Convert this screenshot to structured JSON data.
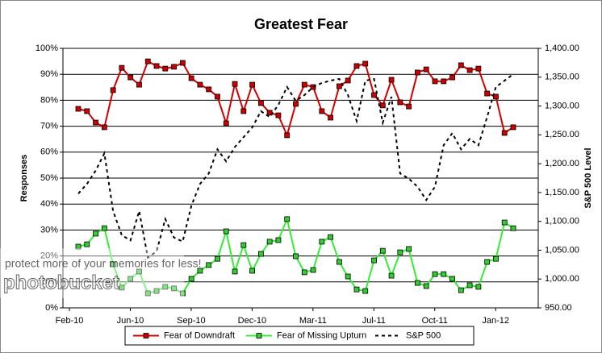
{
  "chart_data": {
    "type": "line",
    "title": "Greatest Fear",
    "y_label": "Responses",
    "y2_label": "S&P 500 Level",
    "categories": [
      "Feb-10",
      null,
      null,
      null,
      null,
      null,
      null,
      "Jun-10",
      null,
      null,
      null,
      null,
      null,
      null,
      "Sep-10",
      null,
      null,
      null,
      null,
      null,
      null,
      "Dec-10",
      null,
      null,
      null,
      null,
      null,
      null,
      "Mar-11",
      null,
      null,
      null,
      null,
      null,
      null,
      "Jul-11",
      null,
      null,
      null,
      null,
      null,
      null,
      "Oct-11",
      null,
      null,
      null,
      null,
      null,
      null,
      "Jan-12",
      null
    ],
    "series": [
      {
        "name": "Fear of Downdraft",
        "color": "#d40000",
        "marker_color": "#cc0000",
        "marker": "square",
        "dashed": false,
        "values": [
          76.7,
          75.8,
          71.4,
          69.6,
          83.9,
          92.5,
          88.8,
          86,
          95,
          93.2,
          92.2,
          92.9,
          94.4,
          88.5,
          86,
          84.2,
          81.4,
          71.1,
          86.3,
          75.8,
          86,
          78.9,
          75.2,
          74.2,
          66.5,
          78.6,
          86,
          85.1,
          75.8,
          73.3,
          85.4,
          87.6,
          93.2,
          94.1,
          82,
          78,
          87.9,
          79.2,
          77.6,
          90.7,
          91.9,
          87.3,
          87.3,
          88.8,
          93.5,
          91.6,
          92.2,
          82.6,
          81.4,
          67.4,
          69.6
        ]
      },
      {
        "name": "Fear of Missing Upturn",
        "color": "#33ee33",
        "marker_color": "#33cc33",
        "marker": "square",
        "dashed": false,
        "values": [
          23.6,
          24.5,
          28.6,
          30.7,
          16.8,
          7.8,
          11.2,
          14,
          5.6,
          6.5,
          8.1,
          7.5,
          5.6,
          11.2,
          14.3,
          16.5,
          18.9,
          29.5,
          14,
          24.2,
          14.3,
          20.8,
          25.5,
          26.1,
          34.2,
          19.9,
          13.7,
          14.6,
          25.5,
          27.3,
          17.7,
          12.1,
          7.1,
          6.5,
          18.3,
          22,
          12.4,
          21.4,
          22.7,
          9.6,
          8.4,
          13,
          13,
          11.2,
          6.8,
          8.7,
          8.1,
          17.7,
          18.9,
          32.9,
          30.7
        ]
      },
      {
        "name": "S&P 500",
        "color": "#000000",
        "marker": "none",
        "dashed": true,
        "axis": "y2",
        "values": [
          1148,
          1165,
          1188,
          1218,
          1118,
          1076,
          1067,
          1118,
          1037,
          1048,
          1104,
          1072,
          1065,
          1127,
          1165,
          1183,
          1225,
          1204,
          1229,
          1246,
          1263,
          1291,
          1281,
          1302,
          1333,
          1309,
          1319,
          1333,
          1340,
          1344,
          1347,
          1319,
          1274,
          1344,
          1347,
          1271,
          1316,
          1183,
          1174,
          1160,
          1137,
          1160,
          1232,
          1253,
          1225,
          1243,
          1232,
          1281,
          1333,
          1344,
          1355
        ]
      }
    ],
    "ylim": [
      0,
      100
    ],
    "yticks": [
      {
        "value": 0,
        "label": "0%"
      },
      {
        "value": 10,
        "label": "10%"
      },
      {
        "value": 20,
        "label": "20%"
      },
      {
        "value": 30,
        "label": "30%"
      },
      {
        "value": 40,
        "label": "40%"
      },
      {
        "value": 50,
        "label": "50%"
      },
      {
        "value": 60,
        "label": "60%"
      },
      {
        "value": 70,
        "label": "70%"
      },
      {
        "value": 80,
        "label": "80%"
      },
      {
        "value": 90,
        "label": "90%"
      },
      {
        "value": 100,
        "label": "100%"
      }
    ],
    "y2lim": [
      950,
      1400
    ],
    "y2ticks": [
      {
        "value": 950,
        "label": "950.00"
      },
      {
        "value": 1000,
        "label": "1,000.00"
      },
      {
        "value": 1050,
        "label": "1,050.00"
      },
      {
        "value": 1100,
        "label": "1,100.00"
      },
      {
        "value": 1150,
        "label": "1,150.00"
      },
      {
        "value": 1200,
        "label": "1,200.00"
      },
      {
        "value": 1250,
        "label": "1,250.00"
      },
      {
        "value": 1300,
        "label": "1,300.00"
      },
      {
        "value": 1350,
        "label": "1,350.00"
      },
      {
        "value": 1400,
        "label": "1,400.00"
      }
    ],
    "grid": true,
    "legend": "bottom"
  },
  "watermark": {
    "brand": "photobucket",
    "tagline": "protect more of your memories for less!"
  }
}
